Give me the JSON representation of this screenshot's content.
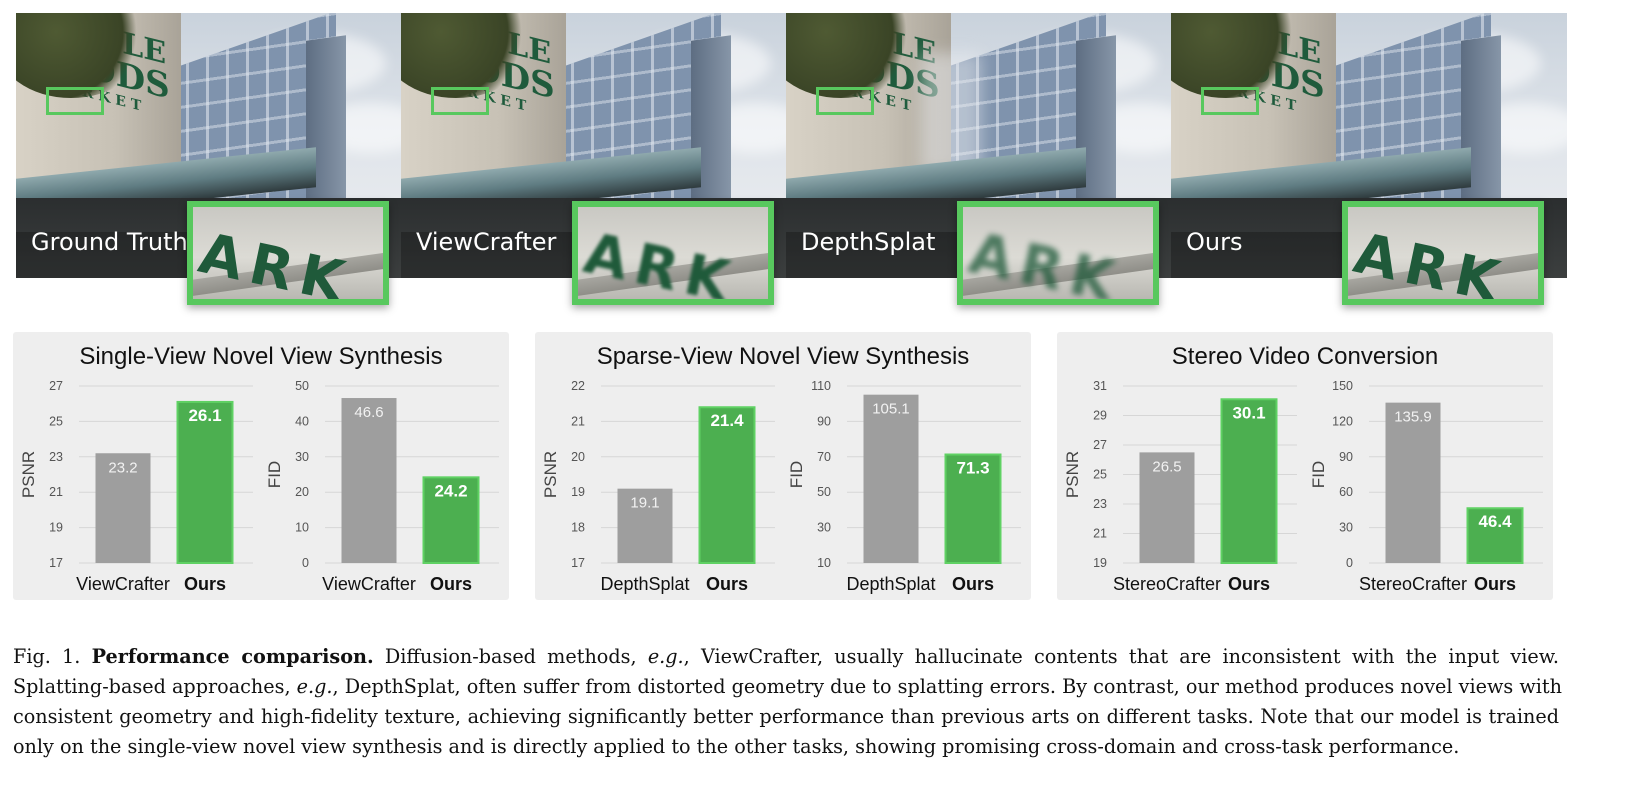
{
  "figure": {
    "panels": [
      {
        "label": "Ground Truth"
      },
      {
        "label": "ViewCrafter"
      },
      {
        "label": "DepthSplat"
      },
      {
        "label": "Ours"
      }
    ],
    "zoom_text": "ARK"
  },
  "accent_green": "#4caf50",
  "bar_gray": "#9e9e9e",
  "chart_data": [
    {
      "title": "Single-View Novel View Synthesis",
      "subcharts": [
        {
          "type": "bar",
          "ylabel": "PSNR",
          "ylim": [
            17,
            27
          ],
          "ticks": [
            "17",
            "19",
            "21",
            "23",
            "25",
            "27"
          ],
          "categories": [
            "ViewCrafter",
            "Ours"
          ],
          "values": [
            23.2,
            26.1
          ],
          "labels": [
            "23.2",
            "26.1"
          ]
        },
        {
          "type": "bar",
          "ylabel": "FID",
          "ylim": [
            0,
            50
          ],
          "ticks": [
            "0",
            "10",
            "20",
            "30",
            "40",
            "50"
          ],
          "categories": [
            "ViewCrafter",
            "Ours"
          ],
          "values": [
            46.6,
            24.2
          ],
          "labels": [
            "46.6",
            "24.2"
          ]
        }
      ]
    },
    {
      "title": "Sparse-View Novel View Synthesis",
      "subcharts": [
        {
          "type": "bar",
          "ylabel": "PSNR",
          "ylim": [
            17,
            22
          ],
          "ticks": [
            "17",
            "18",
            "19",
            "20",
            "21",
            "22"
          ],
          "categories": [
            "DepthSplat",
            "Ours"
          ],
          "values": [
            19.1,
            21.4
          ],
          "labels": [
            "19.1",
            "21.4"
          ]
        },
        {
          "type": "bar",
          "ylabel": "FID",
          "ylim": [
            10,
            110
          ],
          "ticks": [
            "10",
            "30",
            "50",
            "70",
            "90",
            "110"
          ],
          "categories": [
            "DepthSplat",
            "Ours"
          ],
          "values": [
            105.1,
            71.3
          ],
          "labels": [
            "105.1",
            "71.3"
          ]
        }
      ]
    },
    {
      "title": "Stereo Video Conversion",
      "subcharts": [
        {
          "type": "bar",
          "ylabel": "PSNR",
          "ylim": [
            19,
            31
          ],
          "ticks": [
            "19",
            "21",
            "23",
            "25",
            "27",
            "29",
            "31"
          ],
          "categories": [
            "StereoCrafter",
            "Ours"
          ],
          "values": [
            26.5,
            30.1
          ],
          "labels": [
            "26.5",
            "30.1"
          ]
        },
        {
          "type": "bar",
          "ylabel": "FID",
          "ylim": [
            0,
            150
          ],
          "ticks": [
            "0",
            "30",
            "60",
            "90",
            "120",
            "150"
          ],
          "categories": [
            "StereoCrafter",
            "Ours"
          ],
          "values": [
            135.9,
            46.4
          ],
          "labels": [
            "135.9",
            "46.4"
          ]
        }
      ]
    }
  ],
  "caption": {
    "lines": [
      [
        {
          "t": "Fig. 1.  ",
          "s": ""
        },
        {
          "t": "Performance comparison.",
          "s": "b"
        },
        {
          "t": " Diffusion-based methods, ",
          "s": ""
        },
        {
          "t": "e.g.",
          "s": "i"
        },
        {
          "t": ", ViewCrafter, usually hallucinate contents that are inconsistent with the input view.",
          "s": ""
        }
      ],
      [
        {
          "t": "Splatting-based approaches, ",
          "s": ""
        },
        {
          "t": "e.g.",
          "s": "i"
        },
        {
          "t": ", DepthSplat, often suffer from distorted geometry due to splatting errors. By contrast, our method produces novel views with",
          "s": ""
        }
      ],
      [
        {
          "t": "consistent geometry and high-fidelity texture, achieving significantly better performance than previous arts on different tasks. Note that our model is trained",
          "s": ""
        }
      ],
      [
        {
          "t": "only on the single-view novel view synthesis and is directly applied to the other tasks, showing promising cross-domain and cross-task performance.",
          "s": ""
        }
      ]
    ]
  }
}
